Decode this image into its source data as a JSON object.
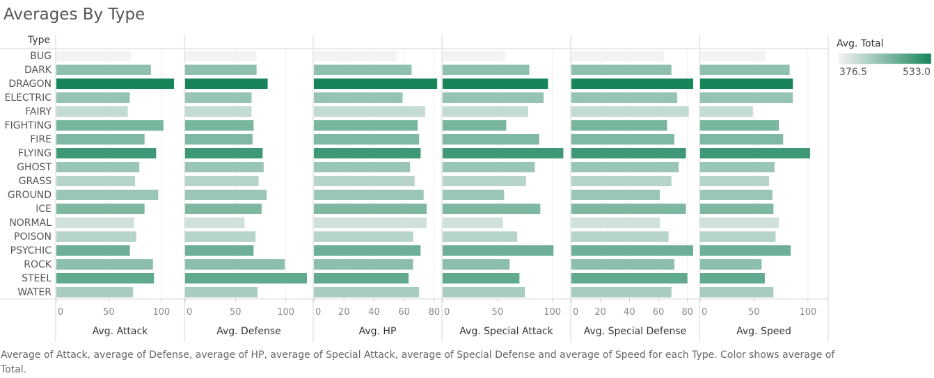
{
  "title": "Averages By Type",
  "row_header": "Type",
  "caption": "Average of Attack, average of Defense, average of HP, average of Special Attack, average of Special Defense and average of Speed for each Type.  Color shows average of Total.",
  "legend": {
    "title": "Avg. Total",
    "min_label": "376.5",
    "max_label": "533.0",
    "min": 376.5,
    "max": 533.0,
    "color_low": "#f3f3f3",
    "color_high": "#17845a"
  },
  "chart_data": {
    "type": "bar",
    "categories": [
      "BUG",
      "DARK",
      "DRAGON",
      "ELECTRIC",
      "FAIRY",
      "FIGHTING",
      "FIRE",
      "FLYING",
      "GHOST",
      "GRASS",
      "GROUND",
      "ICE",
      "NORMAL",
      "POISON",
      "PSYCHIC",
      "ROCK",
      "STEEL",
      "WATER"
    ],
    "color_values": [
      376.5,
      448,
      533,
      443,
      410,
      463,
      458,
      505,
      440,
      420,
      440,
      460,
      402,
      420,
      471,
      450,
      480,
      430
    ],
    "panels": [
      {
        "measure": "Avg. Attack",
        "ticks": [
          0,
          50,
          100
        ],
        "xlim": [
          0,
          116
        ],
        "values": [
          71,
          90,
          112,
          70,
          68,
          102,
          84,
          95,
          79,
          75,
          97,
          84,
          74,
          76,
          70,
          92,
          93,
          73
        ]
      },
      {
        "measure": "Avg. Defense",
        "ticks": [
          0,
          50,
          100
        ],
        "xlim": [
          0,
          121
        ],
        "values": [
          71,
          71,
          82,
          66,
          66,
          68,
          67,
          77,
          78,
          73,
          81,
          76,
          59,
          70,
          68,
          99,
          121,
          72
        ]
      },
      {
        "measure": "Avg. HP",
        "ticks": [
          0,
          20,
          40,
          60,
          80
        ],
        "xlim": [
          0,
          81
        ],
        "values": [
          55,
          65,
          82,
          59,
          74,
          69,
          70,
          71,
          64,
          67,
          73,
          75,
          75,
          66,
          71,
          66,
          63,
          70
        ]
      },
      {
        "measure": "Avg. Special Attack",
        "ticks": [
          0,
          50,
          100
        ],
        "xlim": [
          0,
          111
        ],
        "values": [
          57,
          79,
          96,
          92,
          78,
          58,
          88,
          110,
          84,
          76,
          56,
          89,
          55,
          68,
          101,
          61,
          70,
          75
        ]
      },
      {
        "measure": "Avg. Special Defense",
        "ticks": [
          0,
          20,
          40,
          60,
          80
        ],
        "xlim": [
          0,
          84
        ],
        "values": [
          64,
          69,
          84,
          73,
          81,
          66,
          71,
          79,
          74,
          69,
          61,
          79,
          61,
          67,
          84,
          71,
          80,
          69
        ]
      },
      {
        "measure": "Avg. Speed",
        "ticks": [
          0,
          50,
          100
        ],
        "xlim": [
          0,
          113
        ],
        "values": [
          61,
          83,
          86,
          86,
          49,
          73,
          77,
          102,
          69,
          64,
          67,
          68,
          73,
          70,
          84,
          57,
          60,
          68
        ]
      }
    ]
  }
}
